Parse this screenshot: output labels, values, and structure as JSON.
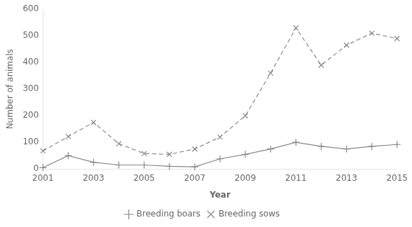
{
  "chart_data": {
    "type": "line",
    "x": [
      2001,
      2002,
      2003,
      2004,
      2005,
      2006,
      2007,
      2008,
      2009,
      2010,
      2011,
      2012,
      2013,
      2014,
      2015
    ],
    "series": [
      {
        "name": "Breeding boars",
        "color": "#888888",
        "marker": "plus",
        "line_style": "solid",
        "values": [
          5,
          50,
          25,
          15,
          15,
          10,
          8,
          38,
          55,
          75,
          100,
          85,
          75,
          85,
          92
        ]
      },
      {
        "name": "Breeding sows",
        "color": "#888888",
        "marker": "x",
        "line_style": "dashed",
        "values": [
          68,
          122,
          175,
          95,
          58,
          55,
          75,
          120,
          200,
          360,
          530,
          390,
          465,
          510,
          490
        ]
      }
    ],
    "x_label": "Year",
    "y_label": "Number of animals",
    "xlim": [
      2001,
      2015
    ],
    "xticks": [
      2001,
      2003,
      2005,
      2007,
      2009,
      2011,
      2013,
      2015
    ],
    "ylim": [
      0,
      600
    ],
    "yticks": [
      0,
      100,
      200,
      300,
      400,
      500,
      600
    ],
    "grid": false,
    "legend": "bottom"
  }
}
